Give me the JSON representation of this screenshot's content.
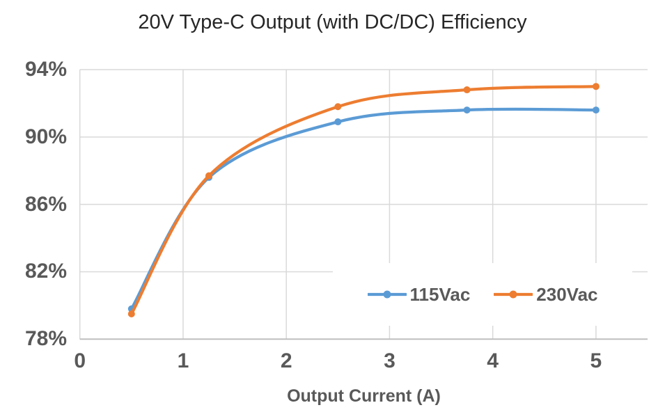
{
  "colors": {
    "grid": "#D9D9D9",
    "axis_line": "#BFBFBF",
    "tick_text": "#595959",
    "title_text": "#262626",
    "background": "#FFFFFF",
    "series_115Vac": "#5B9BD5",
    "series_230Vac": "#ED7D31"
  },
  "chart_data": {
    "type": "line",
    "title": "20V Type-C Output (with DC/DC) Efficiency",
    "xlabel": "Output Current (A)",
    "ylabel": "",
    "x": [
      0.5,
      1.25,
      2.5,
      3.75,
      5
    ],
    "series": [
      {
        "name": "115Vac",
        "color": "#5B9BD5",
        "values": [
          79.8,
          87.6,
          90.9,
          91.6,
          91.6
        ]
      },
      {
        "name": "230Vac",
        "color": "#ED7D31",
        "values": [
          79.5,
          87.7,
          91.8,
          92.8,
          93.0
        ]
      }
    ],
    "xlim": [
      0,
      5.5
    ],
    "ylim": [
      78,
      94
    ],
    "xticks": [
      {
        "value": 0,
        "label": "0"
      },
      {
        "value": 1,
        "label": "1"
      },
      {
        "value": 2,
        "label": "2"
      },
      {
        "value": 3,
        "label": "3"
      },
      {
        "value": 4,
        "label": "4"
      },
      {
        "value": 5,
        "label": "5"
      }
    ],
    "yticks": [
      {
        "value": 94,
        "label": "94%"
      },
      {
        "value": 90,
        "label": "90%"
      },
      {
        "value": 86,
        "label": "86%"
      },
      {
        "value": 82,
        "label": "82%"
      },
      {
        "value": 78,
        "label": "78%"
      }
    ],
    "grid": true,
    "line_smooth": true,
    "marker": "circle",
    "legend_position": "inside-bottom-right"
  }
}
